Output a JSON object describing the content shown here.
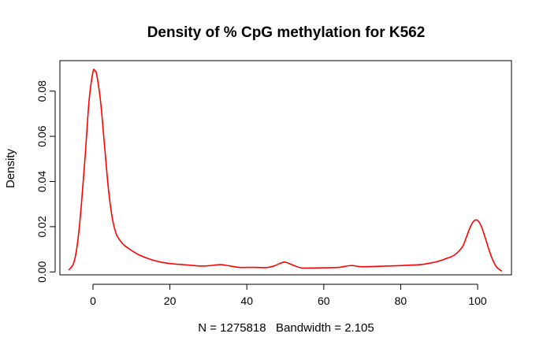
{
  "chart_data": {
    "type": "line",
    "title": "Density of % CpG methylation for K562",
    "xlabel": "N = 1275818   Bandwidth = 2.105",
    "ylabel": "Density",
    "xlim": [
      -8.6,
      108.8
    ],
    "ylim": [
      -0.0013,
      0.0935
    ],
    "xticks": [
      0,
      20,
      40,
      60,
      80,
      100
    ],
    "yticks": [
      0.0,
      0.02,
      0.04,
      0.06,
      0.08
    ],
    "ytick_labels": [
      "0.00",
      "0.02",
      "0.04",
      "0.06",
      "0.08"
    ],
    "grid": false,
    "legend": "none",
    "series": [
      {
        "color": "#ff0000",
        "x": [
          -6.3,
          -5.0,
          -4.0,
          -3.0,
          -2.0,
          -1.0,
          0.0,
          0.5,
          1.0,
          2.0,
          3.0,
          4.0,
          5.0,
          6.0,
          7.0,
          8.0,
          10.0,
          12.0,
          15.0,
          18.0,
          20.0,
          25.0,
          28.0,
          30.0,
          33.0,
          35.0,
          38.0,
          42.0,
          45.0,
          47.0,
          49.0,
          50.0,
          52.0,
          54.0,
          56.0,
          60.0,
          64.0,
          67.0,
          70.0,
          75.0,
          80.0,
          85.0,
          88.0,
          90.0,
          92.0,
          94.0,
          96.0,
          97.0,
          98.0,
          99.0,
          100.0,
          101.0,
          102.0,
          103.0,
          104.0,
          105.0,
          106.3
        ],
        "y": [
          0.0008,
          0.004,
          0.013,
          0.03,
          0.052,
          0.076,
          0.0885,
          0.089,
          0.087,
          0.075,
          0.056,
          0.037,
          0.024,
          0.017,
          0.014,
          0.012,
          0.0095,
          0.0075,
          0.0055,
          0.0042,
          0.0037,
          0.003,
          0.0026,
          0.0027,
          0.0032,
          0.0028,
          0.002,
          0.002,
          0.0019,
          0.0026,
          0.004,
          0.0043,
          0.003,
          0.0018,
          0.0017,
          0.0018,
          0.002,
          0.0028,
          0.0023,
          0.0025,
          0.0028,
          0.0032,
          0.004,
          0.0048,
          0.006,
          0.0075,
          0.011,
          0.015,
          0.0195,
          0.0225,
          0.0228,
          0.02,
          0.015,
          0.0095,
          0.005,
          0.002,
          0.0003
        ]
      }
    ]
  }
}
